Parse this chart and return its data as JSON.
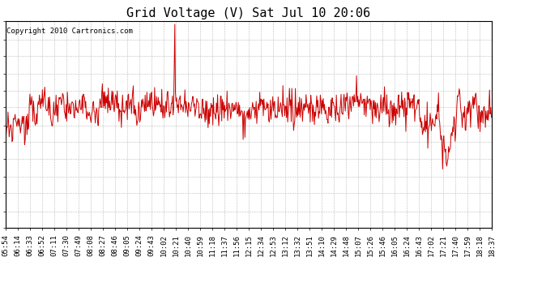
{
  "title": "Grid Voltage (V) Sat Jul 10 20:06",
  "copyright": "Copyright 2010 Cartronics.com",
  "line_color": "#cc0000",
  "bg_color": "#ffffff",
  "plot_bg_color": "#ffffff",
  "grid_color": "#aaaaaa",
  "ylim": [
    235.0,
    248.7
  ],
  "yticks": [
    235.0,
    236.1,
    237.3,
    238.4,
    239.6,
    240.7,
    241.8,
    243.0,
    244.1,
    245.2,
    246.4,
    247.5,
    248.7
  ],
  "xtick_labels": [
    "05:54",
    "06:14",
    "06:33",
    "06:52",
    "07:11",
    "07:30",
    "07:49",
    "08:08",
    "08:27",
    "08:46",
    "09:05",
    "09:24",
    "09:43",
    "10:02",
    "10:21",
    "10:40",
    "10:59",
    "11:18",
    "11:37",
    "11:56",
    "12:15",
    "12:34",
    "12:53",
    "13:12",
    "13:32",
    "13:51",
    "14:10",
    "14:29",
    "14:48",
    "15:07",
    "15:26",
    "15:46",
    "16:05",
    "16:24",
    "16:43",
    "17:02",
    "17:21",
    "17:40",
    "17:59",
    "18:18",
    "18:37"
  ],
  "line_width": 0.7,
  "title_fontsize": 11,
  "tick_fontsize": 6.5,
  "copyright_fontsize": 6.5
}
